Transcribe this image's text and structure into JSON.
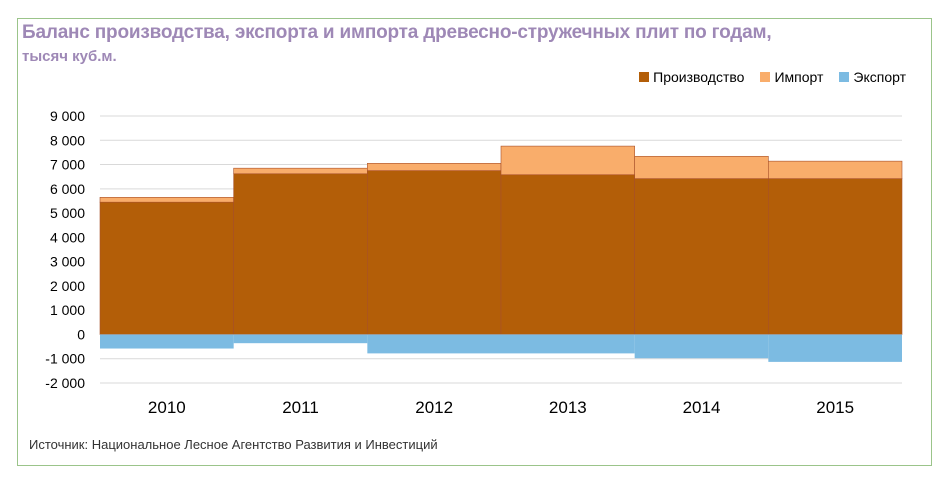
{
  "chart_data": {
    "type": "bar",
    "title": "Баланс производства, экспорта и импорта древесно-стружечных плит по годам,",
    "subtitle": "тысяч куб.м.",
    "categories": [
      "2010",
      "2011",
      "2012",
      "2013",
      "2014",
      "2015"
    ],
    "series": [
      {
        "name": "Производство",
        "color": "#b35e08",
        "values": [
          5450,
          6620,
          6750,
          6580,
          6420,
          6420
        ]
      },
      {
        "name": "Импорт",
        "color": "#f9ad6b",
        "values": [
          200,
          230,
          300,
          1180,
          920,
          720
        ]
      },
      {
        "name": "Экспорт",
        "color": "#7cbbe2",
        "values": [
          -580,
          -360,
          -780,
          -780,
          -980,
          -1130
        ]
      }
    ],
    "y_ticks": [
      "9 000",
      "8 000",
      "7 000",
      "6 000",
      "5 000",
      "4 000",
      "3 000",
      "2 000",
      "1 000",
      "0",
      "-1 000",
      "-2 000"
    ],
    "ylim": [
      -2000,
      9000
    ],
    "grid": true,
    "legend_position": "top-right",
    "source": "Источник: Национальное Лесное Агентство Развития и Инвестиций"
  }
}
